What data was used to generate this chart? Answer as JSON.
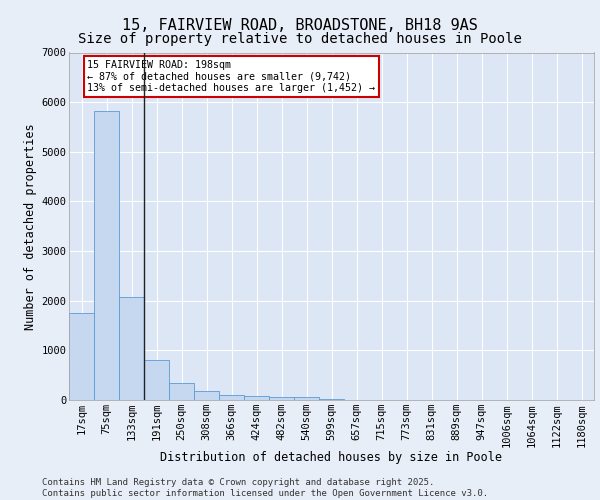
{
  "title1": "15, FAIRVIEW ROAD, BROADSTONE, BH18 9AS",
  "title2": "Size of property relative to detached houses in Poole",
  "xlabel": "Distribution of detached houses by size in Poole",
  "ylabel": "Number of detached properties",
  "categories": [
    "17sqm",
    "75sqm",
    "133sqm",
    "191sqm",
    "250sqm",
    "308sqm",
    "366sqm",
    "424sqm",
    "482sqm",
    "540sqm",
    "599sqm",
    "657sqm",
    "715sqm",
    "773sqm",
    "831sqm",
    "889sqm",
    "947sqm",
    "1006sqm",
    "1064sqm",
    "1122sqm",
    "1180sqm"
  ],
  "values": [
    1750,
    5820,
    2080,
    810,
    340,
    185,
    110,
    90,
    65,
    55,
    30,
    0,
    0,
    0,
    0,
    0,
    0,
    0,
    0,
    0,
    0
  ],
  "bar_color": "#c5d8f0",
  "bar_edge_color": "#5b9bd5",
  "bg_color": "#dce6f5",
  "fig_bg_color": "#e8eef8",
  "annotation_text": "15 FAIRVIEW ROAD: 198sqm\n← 87% of detached houses are smaller (9,742)\n13% of semi-detached houses are larger (1,452) →",
  "annotation_box_color": "#cc0000",
  "vline_x": 2.5,
  "ylim": [
    0,
    7000
  ],
  "yticks": [
    0,
    1000,
    2000,
    3000,
    4000,
    5000,
    6000,
    7000
  ],
  "footer_text": "Contains HM Land Registry data © Crown copyright and database right 2025.\nContains public sector information licensed under the Open Government Licence v3.0.",
  "title_fontsize": 11,
  "subtitle_fontsize": 10,
  "axis_label_fontsize": 8.5,
  "tick_fontsize": 7.5,
  "footer_fontsize": 6.5
}
